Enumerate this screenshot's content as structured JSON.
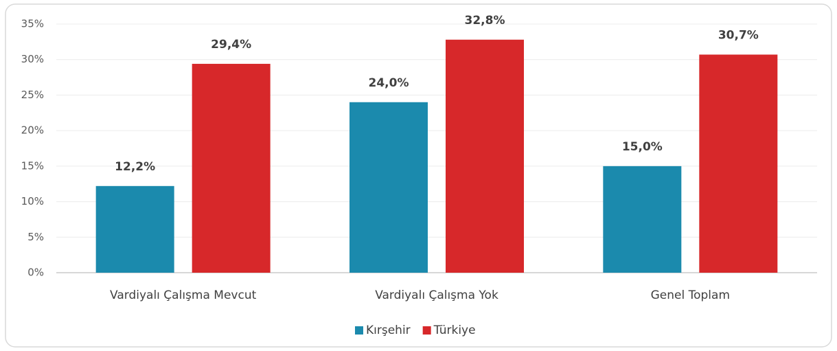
{
  "chart_data": {
    "type": "bar",
    "categories": [
      "Vardiyalı Çalışma Mevcut",
      "Vardiyalı Çalışma Yok",
      "Genel Toplam"
    ],
    "series": [
      {
        "name": "Kırşehir",
        "color": "#1b8aad",
        "values": [
          12.2,
          24.0,
          15.0
        ],
        "value_labels": [
          "12,2%",
          "24,0%",
          "15,0%"
        ]
      },
      {
        "name": "Türkiye",
        "color": "#d7282a",
        "values": [
          29.4,
          32.8,
          30.7
        ],
        "value_labels": [
          "29,4%",
          "32,8%",
          "30,7%"
        ]
      }
    ],
    "ylim": [
      0,
      35
    ],
    "yticks": [
      {
        "value": 0,
        "label": "0%"
      },
      {
        "value": 5,
        "label": "5%"
      },
      {
        "value": 10,
        "label": "10%"
      },
      {
        "value": 15,
        "label": "15%"
      },
      {
        "value": 20,
        "label": "20%"
      },
      {
        "value": 25,
        "label": "25%"
      },
      {
        "value": 30,
        "label": "30%"
      },
      {
        "value": 35,
        "label": "35%"
      }
    ],
    "grid": true,
    "legend": "bottom"
  }
}
